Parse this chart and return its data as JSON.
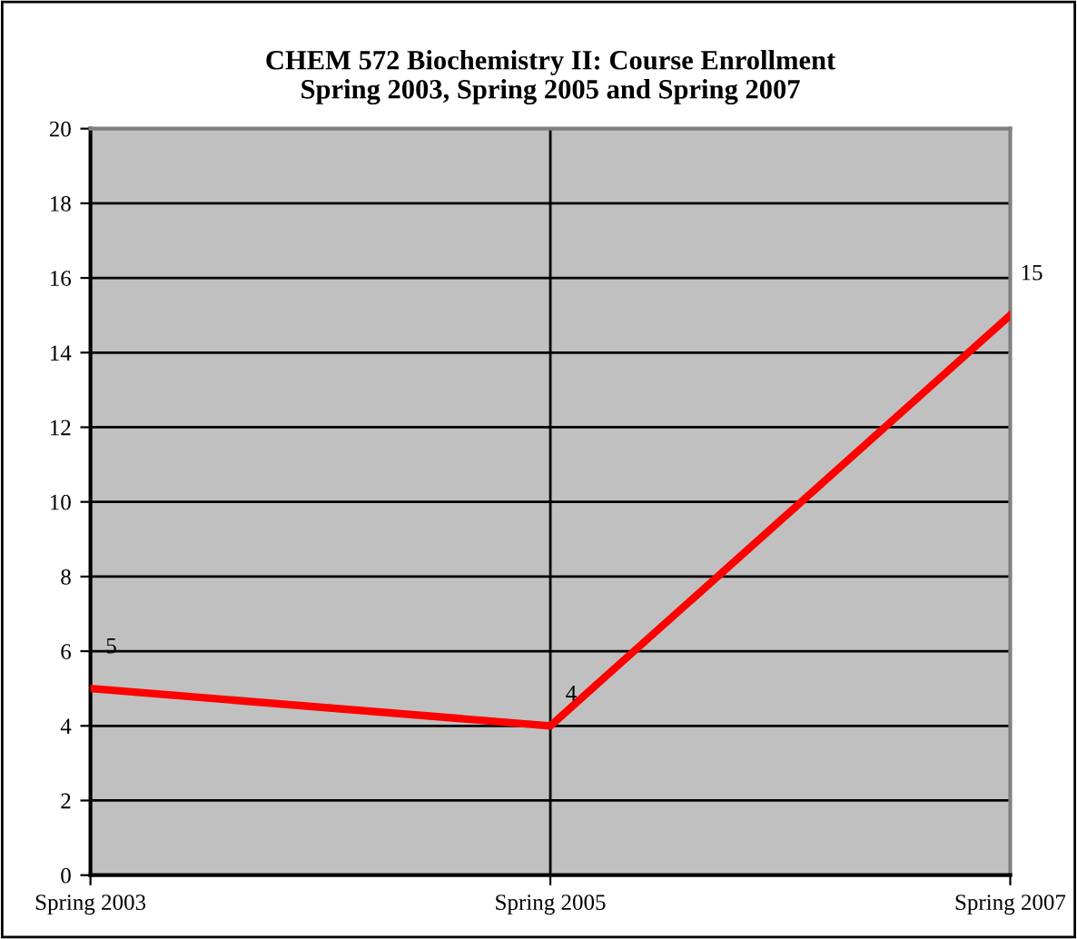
{
  "chart_data": {
    "type": "line",
    "title": "CHEM 572 Biochemistry II: Course Enrollment\nSpring 2003, Spring 2005 and Spring 2007",
    "categories": [
      "Spring 2003",
      "Spring 2005",
      "Spring 2007"
    ],
    "series": [
      {
        "color": "#ff0000",
        "values": [
          5,
          4,
          15
        ]
      }
    ],
    "ylim": [
      0,
      20
    ],
    "yticks": [
      0,
      2,
      4,
      6,
      8,
      10,
      12,
      14,
      16,
      18,
      20
    ],
    "grid": true,
    "data_labels": true,
    "marker": "none",
    "line_style": "solid"
  }
}
